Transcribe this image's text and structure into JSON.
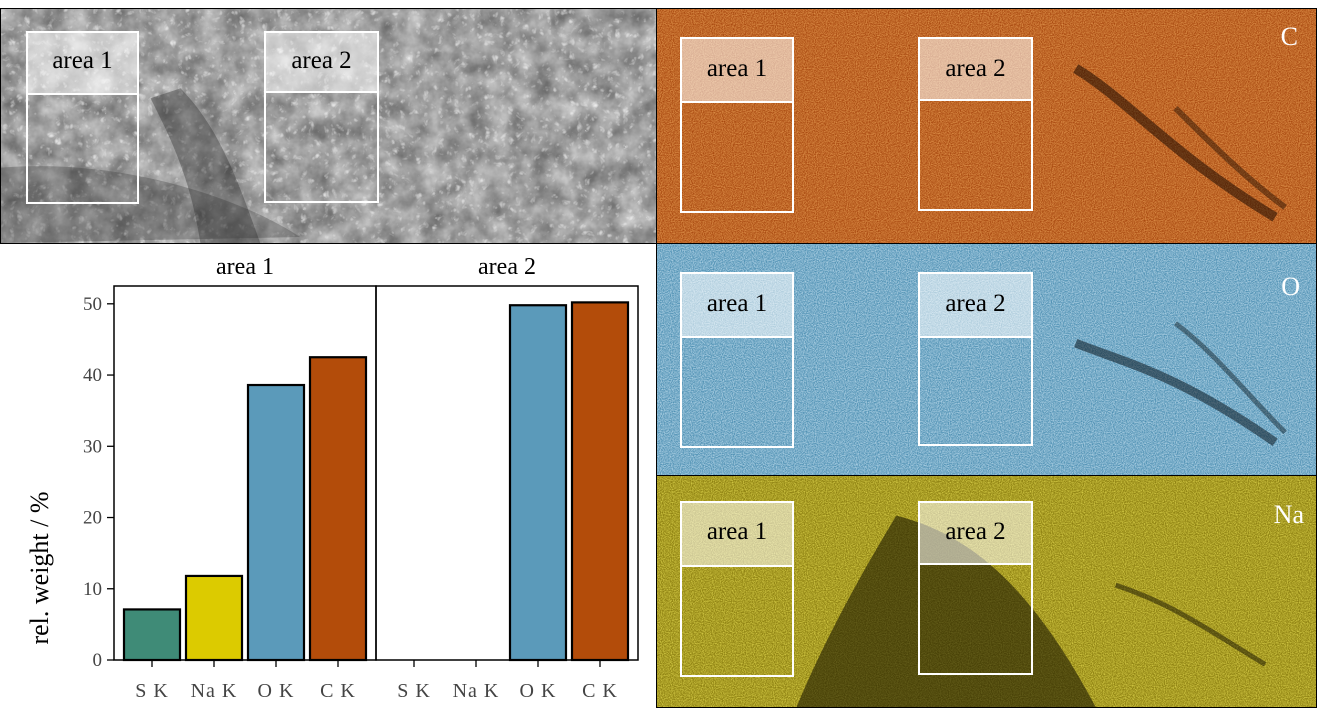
{
  "area_labels": {
    "area1": "area 1",
    "area2": "area 2"
  },
  "maps": {
    "sem": {
      "color": "#9a9a9a"
    },
    "carbon": {
      "element": "C",
      "color": "#b5541a"
    },
    "oxygen": {
      "element": "O",
      "color": "#5aa5c8"
    },
    "sodium": {
      "element": "Na",
      "color": "#c9b81e"
    }
  },
  "chart_data": {
    "type": "bar",
    "ylabel": "rel. weight / %",
    "ylim": [
      0,
      52.5
    ],
    "yticks": [
      0,
      10,
      20,
      30,
      40,
      50
    ],
    "categories": [
      "S K",
      "Na K",
      "O K",
      "C K"
    ],
    "colors": [
      "#3f8b77",
      "#dccb00",
      "#5b9aba",
      "#b34c0a"
    ],
    "facets": [
      {
        "title": "area 1",
        "values": [
          7.1,
          11.8,
          38.6,
          42.5
        ]
      },
      {
        "title": "area 2",
        "values": [
          0,
          0,
          49.8,
          50.2
        ]
      }
    ],
    "grid": false
  }
}
